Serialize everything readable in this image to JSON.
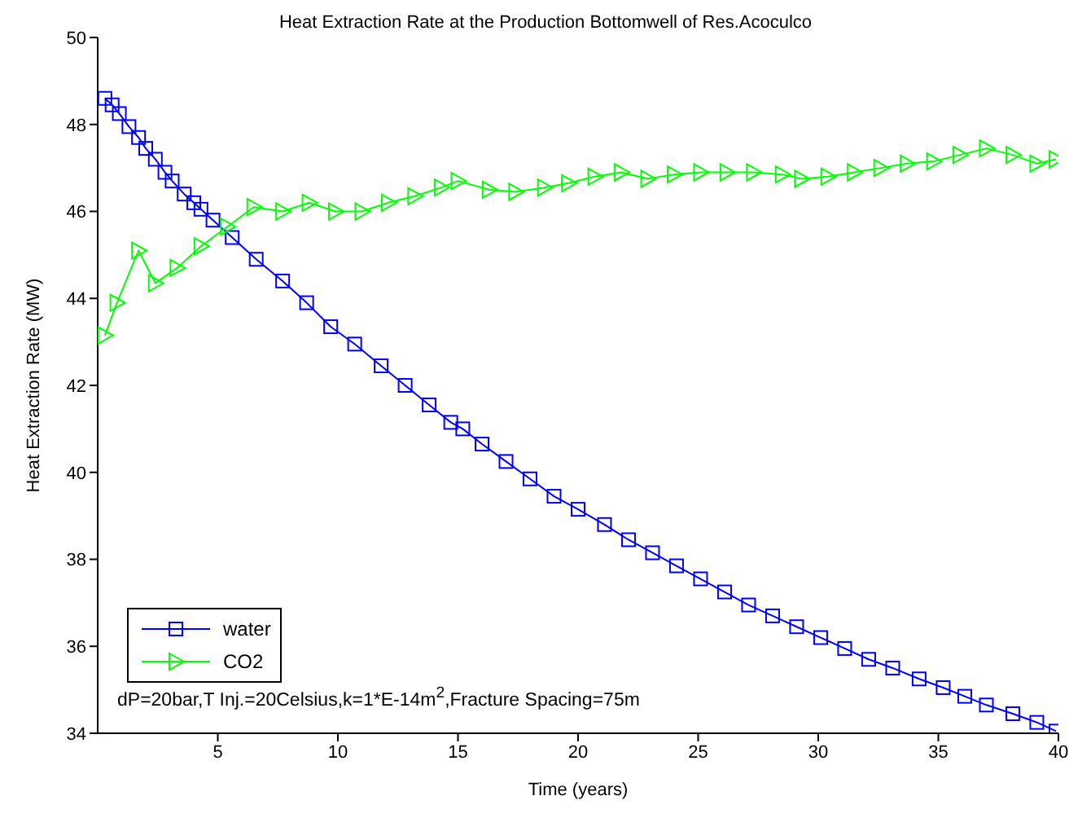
{
  "chart_data": {
    "type": "line",
    "title": "Heat Extraction Rate at the Production Bottomwell of Res.Acoculco",
    "xlabel": "Time (years)",
    "ylabel": "Heat Extraction Rate (MW)",
    "xlim": [
      0,
      40
    ],
    "ylim": [
      34,
      50
    ],
    "xticks": [
      5,
      10,
      15,
      20,
      25,
      30,
      35,
      40
    ],
    "yticks": [
      34,
      36,
      38,
      40,
      42,
      44,
      46,
      48,
      50
    ],
    "grid": false,
    "legend": "bottom left",
    "line_style": "solid",
    "annotations": [
      "dP=20bar,T Inj.=20Celsius,k=1*E-14m$^{2}$,Fracture Spacing=75m"
    ],
    "series": [
      {
        "name": "water",
        "color": "#0000ff",
        "marker": "square",
        "x": [
          0.3,
          0.6,
          0.9,
          1.3,
          1.7,
          2.0,
          2.4,
          2.8,
          3.1,
          3.6,
          4.0,
          4.3,
          4.8,
          5.6,
          6.6,
          7.7,
          8.7,
          9.7,
          10.7,
          11.8,
          12.8,
          13.8,
          14.7,
          15.2,
          16.0,
          17.0,
          18.0,
          19.0,
          20.0,
          21.1,
          22.1,
          23.1,
          24.1,
          25.1,
          26.1,
          27.1,
          28.1,
          29.1,
          30.1,
          31.1,
          32.1,
          33.1,
          34.2,
          35.2,
          36.1,
          37.0,
          38.1,
          39.1,
          39.9
        ],
        "values": [
          48.6,
          48.45,
          48.25,
          47.95,
          47.7,
          47.45,
          47.2,
          46.9,
          46.7,
          46.4,
          46.2,
          46.05,
          45.8,
          45.4,
          44.9,
          44.4,
          43.9,
          43.35,
          42.95,
          42.45,
          42.0,
          41.55,
          41.15,
          41.0,
          40.65,
          40.25,
          39.85,
          39.45,
          39.15,
          38.8,
          38.45,
          38.15,
          37.85,
          37.55,
          37.25,
          36.95,
          36.7,
          36.45,
          36.2,
          35.95,
          35.7,
          35.5,
          35.25,
          35.05,
          34.85,
          34.65,
          34.45,
          34.25,
          34.05
        ]
      },
      {
        "name": "CO2",
        "color": "#00ff00",
        "marker": "triangle",
        "x": [
          0.3,
          0.8,
          1.7,
          2.4,
          3.3,
          4.3,
          5.4,
          6.5,
          7.7,
          8.8,
          9.9,
          11.0,
          12.1,
          13.2,
          14.3,
          15.0,
          16.3,
          17.4,
          18.6,
          19.6,
          20.7,
          21.8,
          22.9,
          24.0,
          25.1,
          26.2,
          27.3,
          28.5,
          29.3,
          30.4,
          31.5,
          32.6,
          33.7,
          34.8,
          35.9,
          37.0,
          38.1,
          39.1,
          39.9
        ],
        "values": [
          43.15,
          43.9,
          45.1,
          44.35,
          44.7,
          45.2,
          45.65,
          46.1,
          46.0,
          46.2,
          46.0,
          46.0,
          46.2,
          46.35,
          46.55,
          46.7,
          46.5,
          46.45,
          46.55,
          46.65,
          46.8,
          46.9,
          46.75,
          46.85,
          46.9,
          46.9,
          46.9,
          46.85,
          46.75,
          46.8,
          46.9,
          47.0,
          47.1,
          47.15,
          47.3,
          47.45,
          47.3,
          47.1,
          47.2
        ]
      }
    ]
  }
}
